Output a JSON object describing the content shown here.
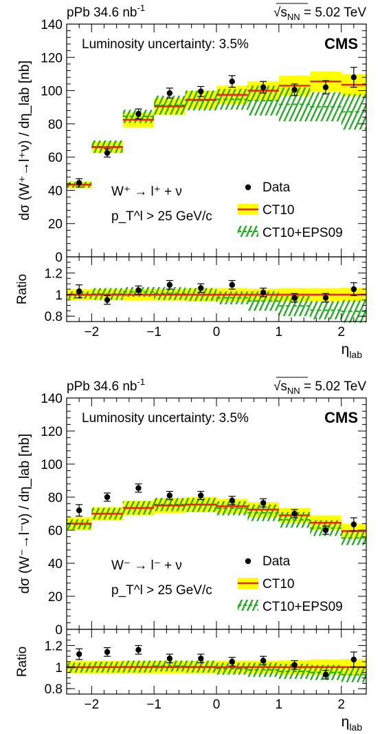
{
  "chart_data": [
    {
      "type": "scatter",
      "header_left": "pPb 34.6 nb",
      "header_left_sup": "-1",
      "header_right_sqrt": "s",
      "header_right_sub": "NN",
      "header_right_value": "= 5.02 TeV",
      "experiment": "CMS",
      "lumi_text": "Luminosity uncertainty: 3.5%",
      "ylabel": "dσ (W⁺→l⁺ν) / dη_lab [nb]",
      "ratio_ylabel": "Ratio",
      "xlabel": "η_lab",
      "process": "W⁺ → l⁺ + ν",
      "cut": "p_T^l > 25 GeV/c",
      "legend": [
        "Data",
        "CT10",
        "CT10+EPS09"
      ],
      "xlim": [
        -2.4,
        2.4
      ],
      "ylim": [
        0,
        140
      ],
      "ratio_ylim": [
        0.75,
        1.35
      ],
      "x_ticks": [
        -2,
        -1,
        0,
        1,
        2
      ],
      "y_ticks": [
        0,
        20,
        40,
        60,
        80,
        100,
        120,
        140
      ],
      "ratio_ticks": [
        0.8,
        1,
        1.2
      ],
      "bin_edges": [
        -2.4,
        -2.0,
        -1.5,
        -1.0,
        -0.5,
        0.0,
        0.5,
        1.0,
        1.5,
        2.0,
        2.4
      ],
      "series": [
        {
          "name": "Data",
          "x": [
            -2.2,
            -1.75,
            -1.25,
            -0.75,
            -0.25,
            0.25,
            0.75,
            1.25,
            1.75,
            2.2
          ],
          "values": [
            44.5,
            62.5,
            86.0,
            98.5,
            99.5,
            105.5,
            102.0,
            100.5,
            102.0,
            108.0
          ],
          "errors": [
            2.5,
            2.5,
            3.0,
            3.0,
            3.0,
            3.5,
            3.5,
            3.5,
            4.0,
            6.0
          ]
        },
        {
          "name": "CT10",
          "values": [
            43.5,
            66.0,
            82.5,
            90.5,
            94.5,
            97.5,
            100.0,
            103.0,
            105.5,
            103.5
          ],
          "err": [
            2.0,
            3.5,
            4.5,
            5.0,
            5.5,
            5.5,
            5.5,
            6.0,
            6.0,
            6.5
          ]
        },
        {
          "name": "CT10+EPS09",
          "lo": [
            41.5,
            62.5,
            80.5,
            85.5,
            88.0,
            88.5,
            85.0,
            81.5,
            81.5,
            76.5
          ],
          "hi": [
            45.0,
            70.0,
            88.5,
            97.0,
            100.0,
            101.0,
            103.0,
            102.0,
            99.0,
            98.0
          ]
        }
      ],
      "ratio_data": [
        1.03,
        0.95,
        1.04,
        1.09,
        1.06,
        1.09,
        1.02,
        0.97,
        0.97,
        1.05
      ],
      "ratio_err": [
        0.06,
        0.04,
        0.04,
        0.04,
        0.04,
        0.04,
        0.04,
        0.04,
        0.04,
        0.06
      ],
      "ratio_ct10_err": [
        0.05,
        0.05,
        0.055,
        0.055,
        0.06,
        0.06,
        0.055,
        0.06,
        0.06,
        0.065
      ],
      "ratio_eps_lo": [
        0.96,
        0.95,
        0.98,
        0.95,
        0.94,
        0.91,
        0.85,
        0.8,
        0.77,
        0.74
      ],
      "ratio_eps_hi": [
        1.03,
        1.06,
        1.07,
        1.07,
        1.06,
        1.03,
        1.03,
        0.99,
        0.94,
        0.95
      ]
    },
    {
      "type": "scatter",
      "header_left": "pPb 34.6 nb",
      "header_left_sup": "-1",
      "header_right_sqrt": "s",
      "header_right_sub": "NN",
      "header_right_value": "= 5.02 TeV",
      "experiment": "CMS",
      "lumi_text": "Luminosity uncertainty: 3.5%",
      "ylabel": "dσ (W⁻→l⁻ν) / dη_lab [nb]",
      "ratio_ylabel": "Ratio",
      "xlabel": "η_lab",
      "process": "W⁻ → l⁻ + ν",
      "cut": "p_T^l > 25 GeV/c",
      "legend": [
        "Data",
        "CT10",
        "CT10+EPS09"
      ],
      "xlim": [
        -2.4,
        2.4
      ],
      "ylim": [
        0,
        140
      ],
      "ratio_ylim": [
        0.75,
        1.35
      ],
      "x_ticks": [
        -2,
        -1,
        0,
        1,
        2
      ],
      "y_ticks": [
        0,
        20,
        40,
        60,
        80,
        100,
        120,
        140
      ],
      "ratio_ticks": [
        0.8,
        1,
        1.2
      ],
      "bin_edges": [
        -2.4,
        -2.0,
        -1.5,
        -1.0,
        -0.5,
        0.0,
        0.5,
        1.0,
        1.5,
        2.0,
        2.4
      ],
      "series": [
        {
          "name": "Data",
          "x": [
            -2.2,
            -1.75,
            -1.25,
            -0.75,
            -0.25,
            0.25,
            0.75,
            1.25,
            1.75,
            2.2
          ],
          "values": [
            72.0,
            80.0,
            85.5,
            81.0,
            81.0,
            78.0,
            76.5,
            70.0,
            60.0,
            63.5
          ],
          "errors": [
            3.5,
            2.5,
            2.5,
            2.5,
            2.5,
            2.5,
            2.5,
            2.5,
            2.5,
            4.0
          ]
        },
        {
          "name": "CT10",
          "values": [
            64.0,
            70.0,
            73.5,
            75.0,
            75.5,
            74.5,
            72.5,
            69.0,
            64.5,
            59.5
          ],
          "err": [
            4.0,
            4.0,
            4.5,
            4.5,
            4.5,
            4.5,
            4.5,
            4.5,
            4.5,
            4.5
          ]
        },
        {
          "name": "CT10+EPS09",
          "lo": [
            60.5,
            66.5,
            69.5,
            71.5,
            71.0,
            69.0,
            65.5,
            61.5,
            56.5,
            51.0
          ],
          "hi": [
            66.5,
            73.5,
            77.5,
            79.5,
            79.5,
            77.5,
            75.5,
            71.0,
            66.0,
            59.5
          ]
        }
      ],
      "ratio_data": [
        1.12,
        1.14,
        1.16,
        1.08,
        1.08,
        1.05,
        1.06,
        1.02,
        0.93,
        1.07
      ],
      "ratio_err": [
        0.05,
        0.04,
        0.04,
        0.04,
        0.04,
        0.04,
        0.04,
        0.04,
        0.04,
        0.07
      ],
      "ratio_ct10_err": [
        0.06,
        0.06,
        0.06,
        0.06,
        0.06,
        0.06,
        0.06,
        0.065,
        0.07,
        0.075
      ],
      "ratio_eps_lo": [
        0.95,
        0.95,
        0.95,
        0.96,
        0.95,
        0.93,
        0.91,
        0.89,
        0.88,
        0.86
      ],
      "ratio_eps_hi": [
        1.04,
        1.05,
        1.06,
        1.06,
        1.06,
        1.04,
        1.04,
        1.03,
        1.02,
        1.0
      ]
    }
  ],
  "colors": {
    "ct10_band": "#ffff00",
    "ct10_line": "#ee2211",
    "eps_hatch": "#22aa22",
    "data": "#000000"
  }
}
